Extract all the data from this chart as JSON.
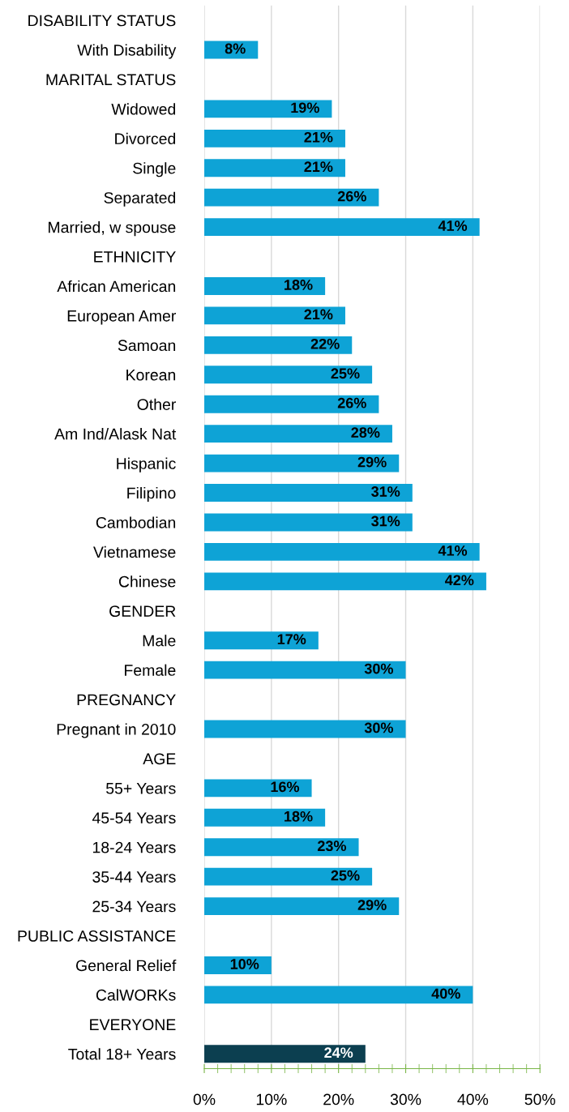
{
  "chart_data": {
    "type": "bar",
    "orientation": "horizontal",
    "categories": [
      "DISABILITY STATUS",
      "With Disability",
      "MARITAL STATUS",
      "Widowed",
      "Divorced",
      "Single",
      "Separated",
      "Married, w spouse",
      "ETHNICITY",
      "African American",
      "European Amer",
      "Samoan",
      "Korean",
      "Other",
      "Am Ind/Alask Nat",
      "Hispanic",
      "Filipino",
      "Cambodian",
      "Vietnamese",
      "Chinese",
      "GENDER",
      "Male",
      "Female",
      "PREGNANCY",
      "Pregnant in 2010",
      "AGE",
      "55+ Years",
      "45-54 Years",
      "18-24 Years",
      "35-44 Years",
      "25-34 Years",
      "PUBLIC ASSISTANCE",
      "General Relief",
      "CalWORKs",
      "EVERYONE",
      "Total 18+ Years"
    ],
    "values": [
      null,
      8,
      null,
      19,
      21,
      21,
      26,
      41,
      null,
      18,
      21,
      22,
      25,
      26,
      28,
      29,
      31,
      31,
      41,
      42,
      null,
      17,
      30,
      null,
      30,
      null,
      16,
      18,
      23,
      25,
      29,
      null,
      10,
      40,
      null,
      24
    ],
    "value_labels": [
      null,
      "8%",
      null,
      "19%",
      "21%",
      "21%",
      "26%",
      "41%",
      null,
      "18%",
      "21%",
      "22%",
      "25%",
      "26%",
      "28%",
      "29%",
      "31%",
      "31%",
      "41%",
      "42%",
      null,
      "17%",
      "30%",
      null,
      "30%",
      null,
      "16%",
      "18%",
      "23%",
      "25%",
      "29%",
      null,
      "10%",
      "40%",
      null,
      "24%"
    ],
    "colors": [
      "#0ea3d6",
      "#0ea3d6",
      "#0ea3d6",
      "#0ea3d6",
      "#0ea3d6",
      "#0ea3d6",
      "#0ea3d6",
      "#0ea3d6",
      "#0ea3d6",
      "#0ea3d6",
      "#0ea3d6",
      "#0ea3d6",
      "#0ea3d6",
      "#0ea3d6",
      "#0ea3d6",
      "#0ea3d6",
      "#0ea3d6",
      "#0ea3d6",
      "#0ea3d6",
      "#0ea3d6",
      "#0ea3d6",
      "#0ea3d6",
      "#0ea3d6",
      "#0ea3d6",
      "#0ea3d6",
      "#0ea3d6",
      "#0ea3d6",
      "#0ea3d6",
      "#0ea3d6",
      "#0ea3d6",
      "#0ea3d6",
      "#0ea3d6",
      "#0ea3d6",
      "#0ea3d6",
      "#0ea3d6",
      "#0c3f50"
    ],
    "xlim": [
      0,
      50
    ],
    "xticks": [
      {
        "value": 0,
        "label": "0%"
      },
      {
        "value": 10,
        "label": "10%"
      },
      {
        "value": 20,
        "label": "20%"
      },
      {
        "value": 30,
        "label": "30%"
      },
      {
        "value": 40,
        "label": "40%"
      },
      {
        "value": 50,
        "label": "50%"
      }
    ],
    "grid": "x"
  }
}
